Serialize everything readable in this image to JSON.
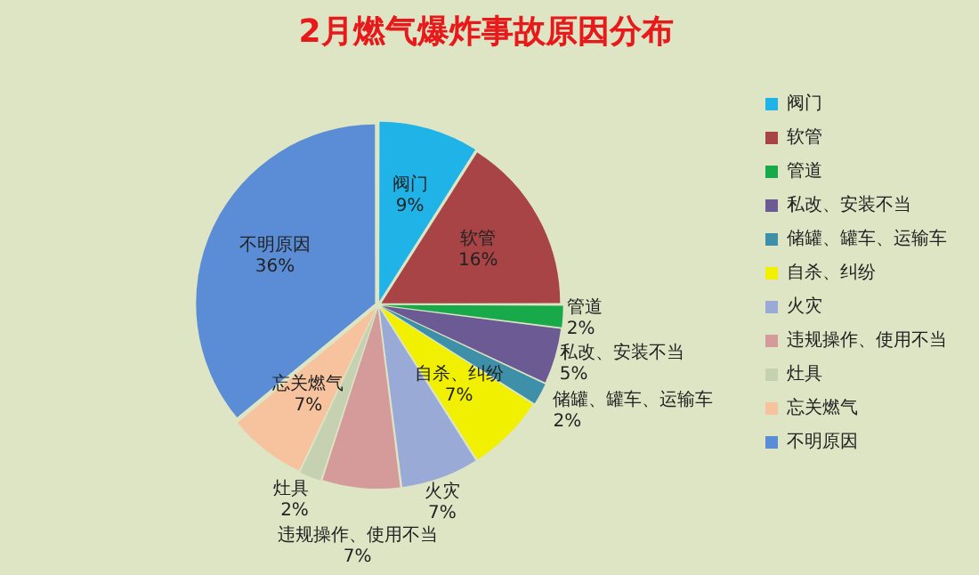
{
  "chart_data": {
    "type": "pie",
    "title": "2月燃气爆炸事故原因分布",
    "categories": [
      "阀门",
      "软管",
      "管道",
      "私改、安装不当",
      "储罐、罐车、运输车",
      "自杀、纠纷",
      "火灾",
      "违规操作、使用不当",
      "灶具",
      "忘关燃气",
      "不明原因"
    ],
    "values": [
      9,
      16,
      2,
      5,
      2,
      7,
      7,
      7,
      2,
      7,
      36
    ],
    "value_labels": [
      "9%",
      "16%",
      "2%",
      "5%",
      "2%",
      "7%",
      "7%",
      "7%",
      "2%",
      "7%",
      "36%"
    ],
    "colors": [
      "#1fb3e8",
      "#a84446",
      "#18a94a",
      "#6b5a94",
      "#3e8fa8",
      "#f0f000",
      "#9aaad6",
      "#d59a9a",
      "#c5d1b1",
      "#f7c39e",
      "#5b8dd6"
    ],
    "legend": "right"
  }
}
